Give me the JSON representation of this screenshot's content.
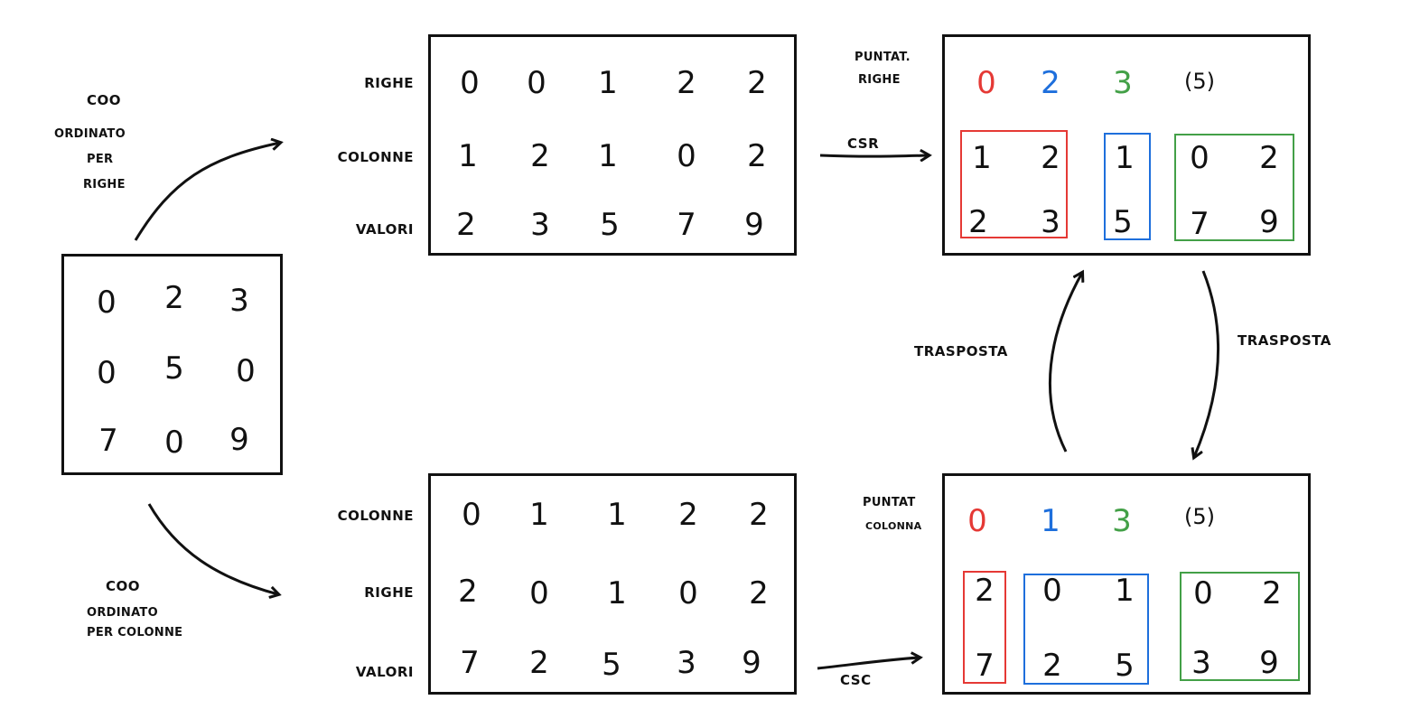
{
  "colors": {
    "ink": "#111111",
    "red": "#e53935",
    "blue": "#1e6fdc",
    "green": "#43a047"
  },
  "matrix": [
    [
      "0",
      "2",
      "3"
    ],
    [
      "0",
      "5",
      "0"
    ],
    [
      "7",
      "0",
      "9"
    ]
  ],
  "coo_rows": {
    "note": [
      "COO",
      "ORDINATO",
      "PER",
      "RIGHE"
    ],
    "labels": {
      "righe": "RIGHE",
      "colonne": "COLONNE",
      "valori": "VALORI"
    },
    "righe": [
      "0",
      "0",
      "1",
      "2",
      "2"
    ],
    "colonne": [
      "1",
      "2",
      "1",
      "0",
      "2"
    ],
    "valori": [
      "2",
      "3",
      "5",
      "7",
      "9"
    ]
  },
  "coo_cols": {
    "note": [
      "COO",
      "ORDINATO",
      "PER COLONNE"
    ],
    "labels": {
      "colonne": "COLONNE",
      "righe": "RIGHE",
      "valori": "VALORI"
    },
    "colonne": [
      "0",
      "1",
      "1",
      "2",
      "2"
    ],
    "righe": [
      "2",
      "0",
      "1",
      "0",
      "2"
    ],
    "valori": [
      "7",
      "2",
      "5",
      "3",
      "9"
    ]
  },
  "csr": {
    "arrow_label": "CSR",
    "ptr_label": [
      "PUNTAT.",
      "RIGHE"
    ],
    "pointers": [
      "0",
      "2",
      "3"
    ],
    "pointer_end": "(5)",
    "groups": [
      {
        "cols": [
          "1",
          "2"
        ],
        "vals": [
          "2",
          "3"
        ]
      },
      {
        "cols": [
          "1"
        ],
        "vals": [
          "5"
        ]
      },
      {
        "cols": [
          "0",
          "2"
        ],
        "vals": [
          "7",
          "9"
        ]
      }
    ]
  },
  "csc": {
    "arrow_label": "CSC",
    "ptr_label": [
      "PUNTAT",
      "COLONNA"
    ],
    "pointers": [
      "0",
      "1",
      "3"
    ],
    "pointer_end": "(5)",
    "groups": [
      {
        "rows": [
          "2"
        ],
        "vals": [
          "7"
        ]
      },
      {
        "rows": [
          "0",
          "1"
        ],
        "vals": [
          "2",
          "5"
        ]
      },
      {
        "rows": [
          "0",
          "2"
        ],
        "vals": [
          "3",
          "9"
        ]
      }
    ]
  },
  "transpose_left": "TRASPOSTA",
  "transpose_right": "TRASPOSTA"
}
